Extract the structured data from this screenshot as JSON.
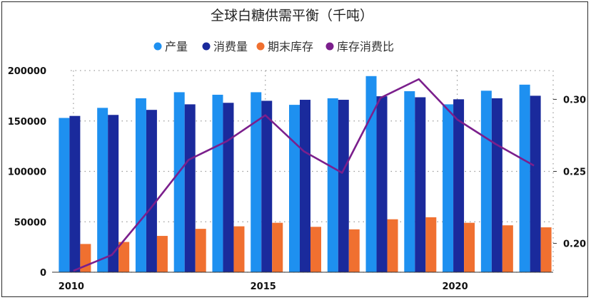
{
  "chart_data": {
    "type": "bar",
    "title": "全球白糖供需平衡（千吨）",
    "x": [
      2010,
      2011,
      2012,
      2013,
      2014,
      2015,
      2016,
      2017,
      2018,
      2019,
      2020,
      2021,
      2022
    ],
    "x_tick_labels": [
      "2010",
      "2015",
      "2020"
    ],
    "series": [
      {
        "name": "产量",
        "type": "bar",
        "axis": "left",
        "color": "#1e90f0",
        "values": [
          153000,
          163000,
          172500,
          178500,
          176000,
          178500,
          166000,
          172500,
          194500,
          179500,
          166500,
          180000,
          186000
        ]
      },
      {
        "name": "消费量",
        "type": "bar",
        "axis": "left",
        "color": "#1a2a9c",
        "values": [
          155000,
          156000,
          161000,
          166500,
          168000,
          170000,
          171000,
          171000,
          174500,
          173500,
          171500,
          172500,
          175000
        ]
      },
      {
        "name": "期末库存",
        "type": "bar",
        "axis": "left",
        "color": "#f07030",
        "values": [
          28000,
          30000,
          36000,
          43000,
          45500,
          49000,
          45000,
          42500,
          52500,
          54500,
          49000,
          46500,
          44500
        ]
      },
      {
        "name": "库存消费比",
        "type": "line",
        "axis": "right",
        "color": "#7b1f8c",
        "values": [
          0.181,
          0.192,
          0.224,
          0.258,
          0.271,
          0.289,
          0.264,
          0.249,
          0.301,
          0.314,
          0.286,
          0.269,
          0.254
        ]
      }
    ],
    "y_left": {
      "range": [
        0,
        200000
      ],
      "ticks": [
        0,
        50000,
        100000,
        150000,
        200000
      ]
    },
    "y_right": {
      "range": [
        0.18,
        0.32
      ],
      "ticks": [
        "0.20",
        "0.25",
        "0.30"
      ]
    },
    "grid": "dotted",
    "legend_position": "top"
  }
}
